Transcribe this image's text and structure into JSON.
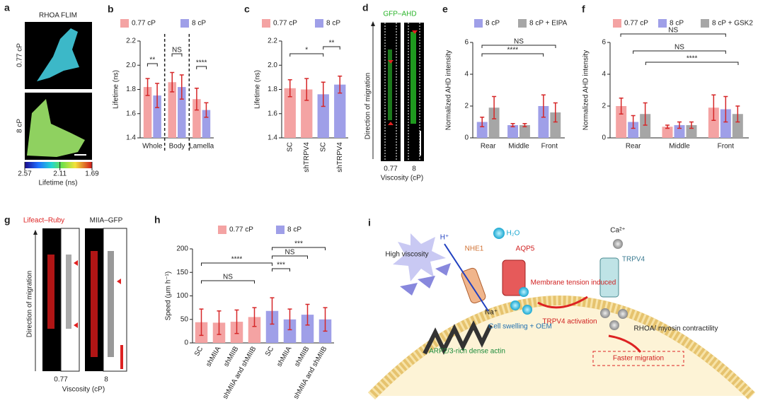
{
  "chart_data": [
    {
      "type": "bar",
      "panel_label": "b",
      "ylabel": "Lifetime (ns)",
      "categories": [
        "Whole",
        "Body",
        "Lamella"
      ],
      "series": [
        {
          "name": "0.77 cP",
          "color": "#f4a3a3",
          "values": [
            1.82,
            1.86,
            1.72
          ],
          "errors": [
            0.07,
            0.08,
            0.09
          ]
        },
        {
          "name": "8 cP",
          "color": "#9f9fe8",
          "values": [
            1.75,
            1.82,
            1.63
          ],
          "errors": [
            0.1,
            0.1,
            0.06
          ]
        }
      ],
      "ylim": [
        1.4,
        2.2
      ],
      "yticks": [
        1.4,
        1.6,
        1.8,
        {
          "value": 2,
          "label": "2.0"
        },
        2.2
      ],
      "annotations": [
        "**",
        "NS",
        "****"
      ]
    },
    {
      "type": "bar",
      "panel_label": "c",
      "ylabel": "Lifetime (ns)",
      "categories": [
        "SC",
        "shTRPV4",
        "SC",
        "shTRPV4"
      ],
      "series": [
        {
          "name": "0.77 cP",
          "color": "#f4a3a3",
          "values": [
            1.81,
            1.8,
            null,
            null
          ],
          "errors": [
            0.07,
            0.09,
            null,
            null
          ]
        },
        {
          "name": "8 cP",
          "color": "#9f9fe8",
          "values": [
            null,
            null,
            1.76,
            1.84
          ],
          "errors": [
            null,
            null,
            0.1,
            0.07
          ]
        }
      ],
      "ylim": [
        1.4,
        2.2
      ],
      "yticks": [
        1.4,
        1.6,
        1.8,
        {
          "value": 2,
          "label": "2.0"
        },
        2.2
      ],
      "annotations": [
        "*",
        "**"
      ]
    },
    {
      "type": "bar",
      "panel_label": "e",
      "ylabel": "Normalized AHD intensity",
      "categories": [
        "Rear",
        "Middle",
        "Front"
      ],
      "series": [
        {
          "name": "8 cP",
          "color": "#9f9fe8",
          "values": [
            1.0,
            0.8,
            2.0
          ],
          "errors": [
            0.3,
            0.1,
            0.7
          ]
        },
        {
          "name": "8 cP + EIPA",
          "color": "#a6a6a6",
          "values": [
            1.9,
            0.8,
            1.6
          ],
          "errors": [
            0.7,
            0.1,
            0.6
          ]
        }
      ],
      "ylim": [
        0,
        6
      ],
      "yticks": [
        0,
        2,
        4,
        6
      ],
      "annotations": [
        "NS",
        "****"
      ]
    },
    {
      "type": "bar",
      "panel_label": "f",
      "ylabel": "Normalized AHD intensity",
      "categories": [
        "Rear",
        "Middle",
        "Front"
      ],
      "series": [
        {
          "name": "0.77 cP",
          "color": "#f4a3a3",
          "values": [
            2.0,
            0.7,
            1.9
          ],
          "errors": [
            0.5,
            0.1,
            0.8
          ]
        },
        {
          "name": "8 cP",
          "color": "#9f9fe8",
          "values": [
            1.0,
            0.8,
            1.8
          ],
          "errors": [
            0.4,
            0.2,
            0.8
          ]
        },
        {
          "name": "8 cP + GSK2",
          "color": "#a6a6a6",
          "values": [
            1.5,
            0.8,
            1.5
          ],
          "errors": [
            0.7,
            0.2,
            0.5
          ]
        }
      ],
      "ylim": [
        0,
        6
      ],
      "yticks": [
        0,
        2,
        4,
        6
      ],
      "annotations": [
        "NS",
        "NS",
        "****"
      ]
    },
    {
      "type": "bar",
      "panel_label": "h",
      "ylabel": "Speed (μm h⁻¹)",
      "categories": [
        "SC",
        "shMIIA",
        "shMIIB",
        "shMIIA and shMIIB",
        "SC",
        "shMIIA",
        "shMIIB",
        "shMIIA and shMIIB"
      ],
      "series": [
        {
          "name": "0.77 cP",
          "color": "#f4a3a3",
          "values": [
            44,
            43,
            45,
            55,
            null,
            null,
            null,
            null
          ],
          "errors": [
            28,
            25,
            25,
            20,
            null,
            null,
            null,
            null
          ]
        },
        {
          "name": "8 cP",
          "color": "#9f9fe8",
          "values": [
            null,
            null,
            null,
            null,
            68,
            50,
            60,
            50
          ],
          "errors": [
            null,
            null,
            null,
            null,
            28,
            22,
            22,
            25
          ]
        }
      ],
      "ylim": [
        0,
        200
      ],
      "yticks": [
        0,
        50,
        100,
        150,
        200
      ],
      "annotations": [
        "****",
        "NS",
        "NS",
        "***",
        "***"
      ]
    }
  ],
  "panel_a": {
    "panel_label": "a",
    "title": "RHOA FLIM",
    "row_labels": [
      "0.77 cP",
      "8 cP"
    ],
    "colorbar_ticks": [
      2.57,
      2.11,
      1.69
    ],
    "colorbar_label": "Lifetime (ns)"
  },
  "panel_d": {
    "panel_label": "d",
    "title": "GFP–AHD",
    "axis_label": "Direction of migration",
    "categories": [
      "0.77",
      "8"
    ],
    "xlabel": "Viscosity (cP)"
  },
  "panel_g": {
    "panel_label": "g",
    "titles": [
      "Lifeact–Ruby",
      "MIIA–GFP"
    ],
    "axis_label": "Direction of migration",
    "categories": [
      "0.77",
      "8"
    ],
    "xlabel": "Viscosity (cP)"
  },
  "panel_i": {
    "panel_label": "i",
    "labels": {
      "viscosity": "High viscosity",
      "proton": "H⁺",
      "nhe1": "NHE1",
      "water": "H₂O",
      "aqp5": "AQP5",
      "sodium": "Na⁺",
      "swelling": "Cell swelling + OEM",
      "tension": "Membrane tension induced",
      "activation": "TRPV4 activation",
      "calcium": "Ca²⁺",
      "trpv4": "TRPV4",
      "rhoa": "RHOA/ myosin contractility",
      "actin": "ARP2/3-rich dense actin",
      "migration": "Faster migration"
    }
  }
}
